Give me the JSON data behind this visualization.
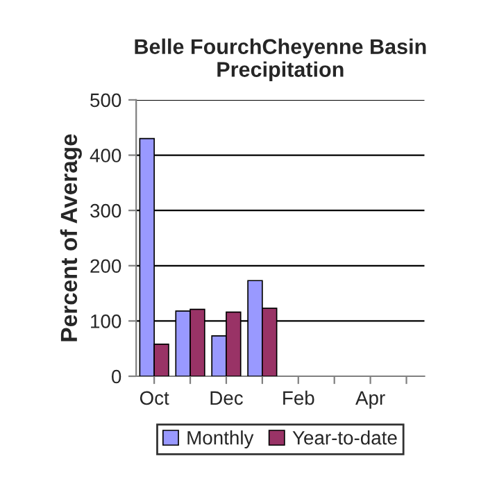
{
  "chart_data": {
    "type": "bar",
    "title": "Belle FourchCheyenne Basin\nPrecipitation",
    "ylabel": "Percent of Average",
    "categories": [
      "Oct",
      null,
      "Dec",
      null,
      "Feb",
      null,
      "Apr",
      null
    ],
    "series": [
      {
        "name": "Monthly",
        "color": "#9999ff",
        "values": [
          430,
          118,
          73,
          173,
          null,
          null,
          null,
          null
        ]
      },
      {
        "name": "Year-to-date",
        "color": "#993366",
        "values": [
          58,
          121,
          116,
          123,
          null,
          null,
          null,
          null
        ]
      }
    ],
    "ylim": [
      0,
      500
    ],
    "yticks": [
      0,
      100,
      200,
      300,
      400,
      500
    ],
    "grid": "y",
    "legend": "bottom"
  }
}
